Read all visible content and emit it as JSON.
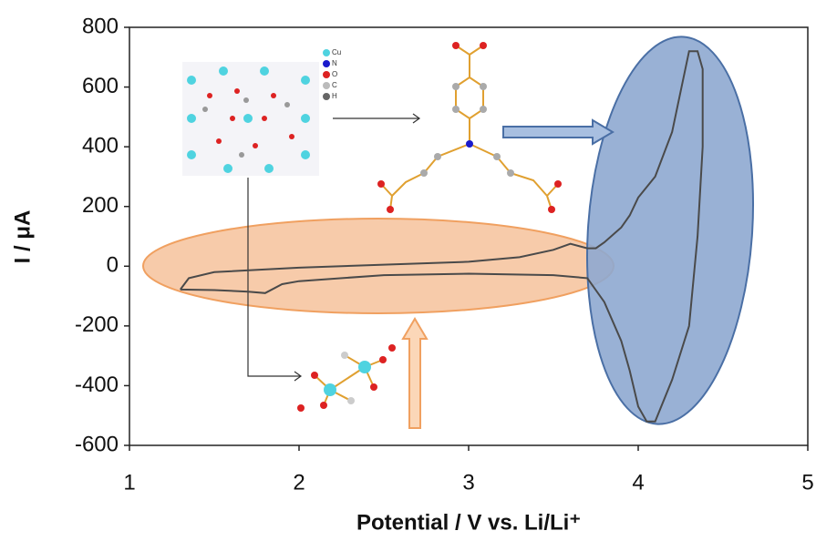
{
  "chart_data": {
    "type": "line",
    "xlabel": "Potential / V vs. Li/Li⁺",
    "ylabel": "I / μA",
    "xlim": [
      1,
      5
    ],
    "xticks": [
      1,
      2,
      3,
      4,
      5
    ],
    "ylim": [
      -600,
      800
    ],
    "yticks": [
      -600,
      -400,
      -200,
      0,
      200,
      400,
      600,
      800
    ],
    "annotations": [
      "Cu",
      "N",
      "O",
      "C",
      "H"
    ],
    "series": [
      {
        "color": "#4a4a4a",
        "x": [
          1.3,
          1.35,
          1.5,
          2.0,
          2.5,
          3.0,
          3.3,
          3.5,
          3.6,
          3.7,
          3.75,
          3.8,
          3.9,
          3.95,
          4.0,
          4.1,
          4.2,
          4.3,
          4.35,
          4.38,
          4.38,
          4.35,
          4.3,
          4.2,
          4.1,
          4.05,
          4.0,
          3.95,
          3.9,
          3.8,
          3.7,
          3.5,
          3.0,
          2.5,
          2.0,
          1.9,
          1.8,
          1.7,
          1.5,
          1.3
        ],
        "values": [
          -78,
          -40,
          -20,
          -5,
          5,
          15,
          30,
          55,
          75,
          60,
          60,
          80,
          130,
          170,
          230,
          300,
          450,
          720,
          720,
          660,
          400,
          100,
          -200,
          -380,
          -520,
          -520,
          -470,
          -350,
          -250,
          -120,
          -40,
          -30,
          -25,
          -30,
          -50,
          -60,
          -90,
          -85,
          -80,
          -78
        ]
      }
    ]
  }
}
